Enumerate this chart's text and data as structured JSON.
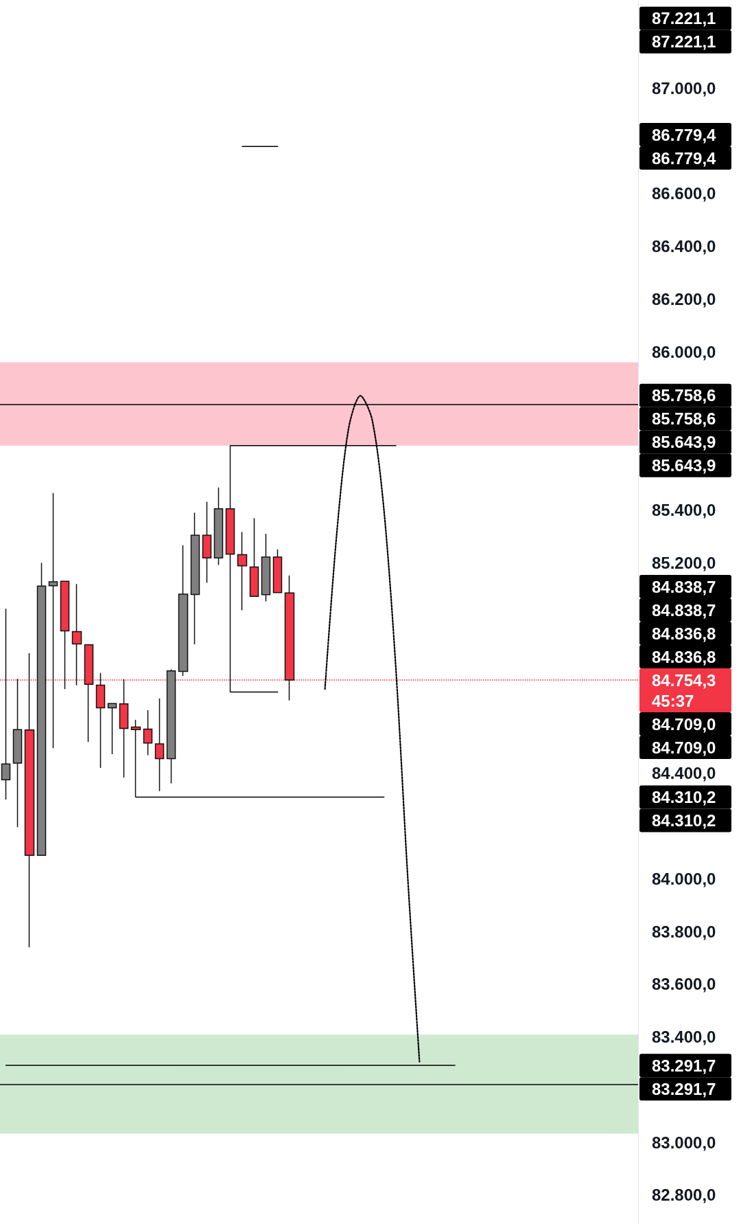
{
  "chart_data": {
    "type": "candlestick",
    "categories": [
      null,
      null,
      null,
      null,
      null,
      null,
      null,
      null,
      null,
      null,
      null,
      null,
      null,
      null,
      null,
      null,
      null,
      null,
      null,
      null,
      null,
      null,
      null,
      null,
      null,
      null,
      null,
      null,
      null,
      null,
      null,
      null,
      null,
      null,
      null,
      null,
      null,
      null,
      null,
      null,
      null,
      null,
      null,
      null,
      null,
      null,
      null,
      null,
      null,
      null,
      null,
      null,
      null,
      null
    ],
    "ohlc": [
      [
        84376,
        85025,
        84301,
        84436
      ],
      [
        84439,
        84759,
        84196,
        84566
      ],
      [
        84565,
        84856,
        83740,
        84089
      ],
      [
        84089,
        85199,
        84089,
        85111
      ],
      [
        85112,
        85464,
        84496,
        85127
      ],
      [
        85129,
        85129,
        84720,
        84941
      ],
      [
        84938,
        85119,
        84734,
        84891
      ],
      [
        84888,
        84888,
        84519,
        84738
      ],
      [
        84735,
        84781,
        84421,
        84649
      ],
      [
        84649,
        84665,
        84473,
        84665
      ],
      [
        84664,
        84758,
        84384,
        84571
      ],
      [
        84576,
        84603,
        84310,
        84566
      ],
      [
        84568,
        84640,
        84469,
        84515
      ],
      [
        84512,
        84685,
        84333,
        84456
      ],
      [
        84456,
        84795,
        84362,
        84789
      ],
      [
        84787,
        85266,
        84770,
        85080
      ],
      [
        85079,
        85389,
        84890,
        85304
      ],
      [
        85304,
        85431,
        85123,
        85218
      ],
      [
        85218,
        85485,
        85191,
        85404
      ],
      [
        85404,
        85644,
        84709,
        85232
      ],
      [
        85230,
        85316,
        85019,
        85188
      ],
      [
        85183,
        85368,
        85070,
        85072
      ],
      [
        85078,
        85309,
        85053,
        85221
      ],
      [
        85221,
        85250,
        85086,
        85086
      ],
      [
        85085,
        85151,
        84677,
        84754.3
      ],
      null,
      null,
      null,
      null,
      null,
      null,
      null,
      null,
      null,
      null,
      null,
      null,
      null,
      null,
      null,
      null,
      null,
      null,
      null,
      null,
      null,
      null,
      null,
      null,
      null,
      null,
      null,
      null,
      null
    ],
    "colors": [
      "#808080",
      "#808080",
      "#f23645",
      "#808080",
      "#808080",
      "#f23645",
      "#f23645",
      "#f23645",
      "#f23645",
      "#808080",
      "#f23645",
      "#f23645",
      "#f23645",
      "#f23645",
      "#808080",
      "#808080",
      "#808080",
      "#f23645",
      "#808080",
      "#f23645",
      "#f23645",
      "#f23645",
      "#808080",
      "#f23645",
      "#f23645",
      null,
      null,
      null,
      null,
      null,
      null,
      null,
      null,
      null,
      null,
      null,
      null,
      null,
      null,
      null,
      null,
      null,
      null,
      null,
      null,
      null,
      null,
      null,
      null,
      null,
      null,
      null,
      null,
      null
    ],
    "series": [
      {
        "type": "line",
        "color": "#000000",
        "line_style": "solid",
        "values": [
          83292,
          83292,
          83292,
          83292,
          83292,
          83292,
          83292,
          83292,
          83292,
          83292,
          83292,
          83292,
          83292,
          83292,
          83292,
          83292,
          83292,
          83292,
          83292,
          83292,
          83292,
          83292,
          83292,
          83292,
          83292,
          83292,
          83292,
          83292,
          83292,
          83292,
          83292,
          83292,
          83292,
          83292,
          83292,
          83292,
          83292,
          83292,
          83292,
          null,
          null,
          null,
          null,
          null,
          null,
          null,
          null,
          null,
          null,
          null,
          null,
          null,
          null,
          null
        ]
      },
      {
        "type": "line",
        "color": "#000000",
        "line_style": "solid",
        "values": [
          null,
          null,
          null,
          null,
          null,
          null,
          null,
          null,
          null,
          null,
          null,
          84310,
          84310,
          84310,
          84310,
          84310,
          84310,
          84310,
          84310,
          84310,
          84310,
          84310,
          84310,
          84310,
          84310,
          84310,
          84310,
          84310,
          84310,
          84310,
          84310,
          84310,
          84310,
          null,
          null,
          null,
          null,
          null,
          null,
          null,
          null,
          null,
          null,
          null,
          null,
          null,
          null,
          null,
          null,
          null,
          null,
          null,
          null,
          null
        ]
      },
      {
        "type": "line",
        "color": "#000000",
        "line_style": "solid",
        "values": [
          null,
          null,
          null,
          null,
          null,
          null,
          null,
          null,
          null,
          null,
          null,
          null,
          null,
          null,
          null,
          null,
          null,
          null,
          null,
          85644,
          85644,
          85644,
          85644,
          85644,
          85644,
          85644,
          85644,
          85644,
          85644,
          85644,
          85644,
          85644,
          85644,
          85644,
          null,
          null,
          null,
          null,
          null,
          null,
          null,
          null,
          null,
          null,
          null,
          null,
          null,
          null,
          null,
          null,
          null,
          null,
          null,
          null
        ]
      },
      {
        "type": "line",
        "color": "#000000",
        "line_style": "solid",
        "values": [
          null,
          null,
          null,
          null,
          null,
          null,
          null,
          null,
          null,
          null,
          null,
          null,
          null,
          null,
          null,
          null,
          null,
          null,
          null,
          84709,
          84709,
          84709,
          84709,
          84709,
          null,
          null,
          null,
          null,
          null,
          null,
          null,
          null,
          null,
          null,
          null,
          null,
          null,
          null,
          null,
          null,
          null,
          null,
          null,
          null,
          null,
          null,
          null,
          null,
          null,
          null,
          null,
          null,
          null,
          null
        ]
      },
      {
        "type": "line",
        "color": "#000000",
        "line_style": "solid",
        "values": [
          null,
          null,
          null,
          null,
          null,
          null,
          null,
          null,
          null,
          null,
          null,
          null,
          null,
          null,
          null,
          null,
          null,
          null,
          null,
          null,
          86779,
          86779,
          86779,
          86779,
          null,
          null,
          null,
          null,
          null,
          null,
          null,
          null,
          null,
          null,
          null,
          null,
          null,
          null,
          null,
          null,
          null,
          null,
          null,
          null,
          null,
          null,
          null,
          null,
          null,
          null,
          null,
          null,
          null,
          null
        ]
      },
      {
        "type": "line",
        "color": "#000000",
        "line_style": "dotted",
        "values": [
          null,
          null,
          null,
          null,
          null,
          null,
          null,
          null,
          null,
          null,
          null,
          null,
          null,
          null,
          null,
          null,
          null,
          null,
          null,
          null,
          null,
          null,
          null,
          null,
          null,
          null,
          null,
          84720,
          85311,
          85709,
          85833,
          85741,
          85396,
          84799,
          84010,
          83306,
          null,
          null,
          null,
          null,
          null,
          null,
          null,
          null,
          null,
          null,
          null,
          null,
          null,
          null,
          null,
          null,
          null,
          null
        ]
      }
    ],
    "ylim": [
      82690,
      87335
    ],
    "yticks": [
      {
        "value": 82800,
        "label": "82.800,0"
      },
      {
        "value": 83000,
        "label": "83.000,0"
      },
      {
        "value": 83400,
        "label": "83.400,0"
      },
      {
        "value": 83600,
        "label": "83.600,0"
      },
      {
        "value": 83800,
        "label": "83.800,0"
      },
      {
        "value": 84000,
        "label": "84.000,0"
      },
      {
        "value": 84400,
        "label": "84.400,0"
      },
      {
        "value": 85200,
        "label": "85.200,0"
      },
      {
        "value": 85400,
        "label": "85.400,0"
      },
      {
        "value": 86000,
        "label": "86.000,0"
      },
      {
        "value": 86200,
        "label": "86.200,0"
      },
      {
        "value": 86400,
        "label": "86.400,0"
      },
      {
        "value": 86600,
        "label": "86.600,0"
      },
      {
        "value": 87000,
        "label": "87.000,0"
      }
    ],
    "tick_labels": "y",
    "marker": "none",
    "bands": [
      {
        "axis": "y",
        "from": 85644,
        "to": 85960,
        "color": "#fdc5cd"
      },
      {
        "axis": "y",
        "from": 83033,
        "to": 83409,
        "color": "#cfe9d0"
      }
    ],
    "ref_lines": [
      {
        "axis": "y",
        "value": 85800,
        "color": "#000000",
        "line_style": "solid"
      },
      {
        "axis": "y",
        "value": 83220,
        "color": "#000000",
        "line_style": "solid"
      },
      {
        "axis": "y",
        "value": 84754.3,
        "label": "84.754,3\n45:37",
        "color": "#f23645",
        "line_style": "dotted"
      }
    ],
    "annotations": [
      "87.221,1",
      "87.221,1",
      "86.779,4",
      "86.779,4",
      "85.758,6",
      "85.758,6",
      "85.643,9",
      "85.643,9",
      "84.838,7",
      "84.838,7",
      "84.836,8",
      "84.836,8",
      "84.709,0",
      "84.709,0",
      "84.310,2",
      "84.310,2",
      "83.291,7",
      "83.291,7"
    ]
  }
}
